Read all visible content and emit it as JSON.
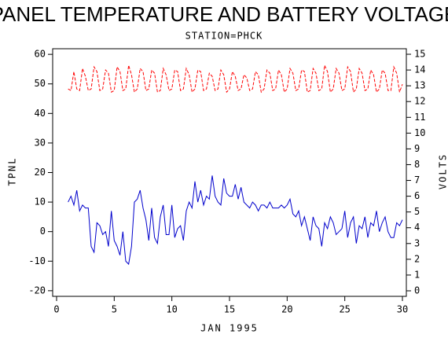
{
  "chart_data": {
    "type": "line",
    "title": "PANEL TEMPERATURE AND BATTERY VOLTAGE",
    "subtitle": "STATION=PHCK",
    "xlabel": "JAN 1995",
    "ylabel": "TPNL",
    "y2label": "VOLTS",
    "x": [
      1,
      1.25,
      1.5,
      1.75,
      2,
      2.25,
      2.5,
      2.75,
      3,
      3.25,
      3.5,
      3.75,
      4,
      4.25,
      4.5,
      4.75,
      5,
      5.25,
      5.5,
      5.75,
      6,
      6.25,
      6.5,
      6.75,
      7,
      7.25,
      7.5,
      7.75,
      8,
      8.25,
      8.5,
      8.75,
      9,
      9.25,
      9.5,
      9.75,
      10,
      10.25,
      10.5,
      10.75,
      11,
      11.25,
      11.5,
      11.75,
      12,
      12.25,
      12.5,
      12.75,
      13,
      13.25,
      13.5,
      13.75,
      14,
      14.25,
      14.5,
      14.75,
      15,
      15.25,
      15.5,
      15.75,
      16,
      16.25,
      16.5,
      16.75,
      17,
      17.25,
      17.5,
      17.75,
      18,
      18.25,
      18.5,
      18.75,
      19,
      19.25,
      19.5,
      19.75,
      20,
      20.25,
      20.5,
      20.75,
      21,
      21.25,
      21.5,
      21.75,
      22,
      22.25,
      22.5,
      22.75,
      23,
      23.25,
      23.5,
      23.75,
      24,
      24.25,
      24.5,
      24.75,
      25,
      25.25,
      25.5,
      25.75,
      26,
      26.25,
      26.5,
      26.75,
      27,
      27.25,
      27.5,
      27.75,
      28,
      28.25,
      28.5,
      28.75,
      29,
      29.25,
      29.5,
      29.75,
      30
    ],
    "series": [
      {
        "color": "#0000cc",
        "dashed": false,
        "values": [
          10,
          12,
          9,
          14,
          7,
          9,
          8,
          8,
          -5,
          -7,
          3,
          2,
          -1,
          0,
          -5,
          7,
          -3,
          -5,
          -8,
          0,
          -10,
          -11,
          -5,
          10,
          11,
          14,
          8,
          4,
          -3,
          8,
          -2,
          -4,
          5,
          9,
          -1,
          -1,
          9,
          -2,
          1,
          2,
          -3,
          7,
          10,
          8,
          17,
          10,
          14,
          9,
          12,
          11,
          19,
          12,
          10,
          9,
          18,
          13,
          12,
          12,
          16,
          11,
          15,
          10,
          9,
          8,
          10,
          9,
          7,
          9,
          9,
          8,
          10,
          8,
          8,
          8,
          9,
          8,
          9,
          11,
          6,
          5,
          7,
          2,
          5,
          1,
          -3,
          5,
          2,
          1,
          -5,
          3,
          1,
          5,
          3,
          -1,
          0,
          1,
          7,
          -2,
          3,
          5,
          -4,
          2,
          1,
          5,
          -2,
          3,
          2,
          7,
          0,
          3,
          5,
          0,
          -2,
          -2,
          3,
          2,
          4
        ]
      },
      {
        "color": "#ff0000",
        "dashed": true,
        "axis": "y2",
        "values": [
          12.8,
          12.7,
          13.9,
          12.8,
          12.7,
          14.1,
          13.6,
          12.7,
          12.8,
          14.2,
          13.9,
          12.7,
          12.8,
          14.0,
          13.8,
          12.6,
          12.7,
          14.2,
          13.9,
          12.7,
          12.8,
          14.3,
          13.7,
          12.6,
          12.8,
          14.1,
          13.9,
          12.7,
          12.8,
          14.0,
          13.8,
          12.6,
          12.7,
          14.1,
          13.7,
          12.7,
          12.8,
          14.0,
          13.9,
          12.7,
          12.8,
          14.1,
          13.7,
          12.6,
          12.8,
          14.0,
          13.9,
          12.7,
          12.8,
          13.8,
          13.6,
          12.7,
          12.8,
          14.0,
          13.7,
          12.6,
          12.8,
          13.9,
          13.6,
          12.7,
          12.8,
          13.7,
          13.5,
          12.7,
          12.8,
          13.9,
          13.7,
          12.6,
          12.8,
          14.0,
          13.8,
          12.7,
          12.8,
          14.0,
          13.7,
          12.6,
          12.8,
          14.1,
          13.8,
          12.7,
          12.8,
          14.0,
          13.9,
          12.6,
          12.7,
          14.1,
          13.8,
          12.7,
          12.8,
          14.3,
          13.9,
          12.6,
          12.8,
          14.1,
          13.8,
          12.7,
          12.8,
          14.2,
          13.9,
          12.6,
          12.8,
          14.1,
          13.8,
          12.7,
          12.8,
          14.0,
          13.7,
          12.6,
          12.8,
          14.0,
          13.8,
          12.7,
          12.7,
          14.2,
          13.8,
          12.6,
          13.1
        ]
      }
    ],
    "xlim": [
      -0.34,
      30.34
    ],
    "xticks": [
      0,
      5,
      10,
      15,
      20,
      25,
      30
    ],
    "ylim": [
      -21.9,
      61.9
    ],
    "yticks": [
      -20,
      -10,
      0,
      10,
      20,
      30,
      40,
      50,
      60
    ],
    "y2lim": [
      -0.35,
      15.35
    ],
    "y2ticks": [
      0,
      1,
      2,
      3,
      4,
      5,
      6,
      7,
      8,
      9,
      10,
      11,
      12,
      13,
      14,
      15
    ]
  }
}
